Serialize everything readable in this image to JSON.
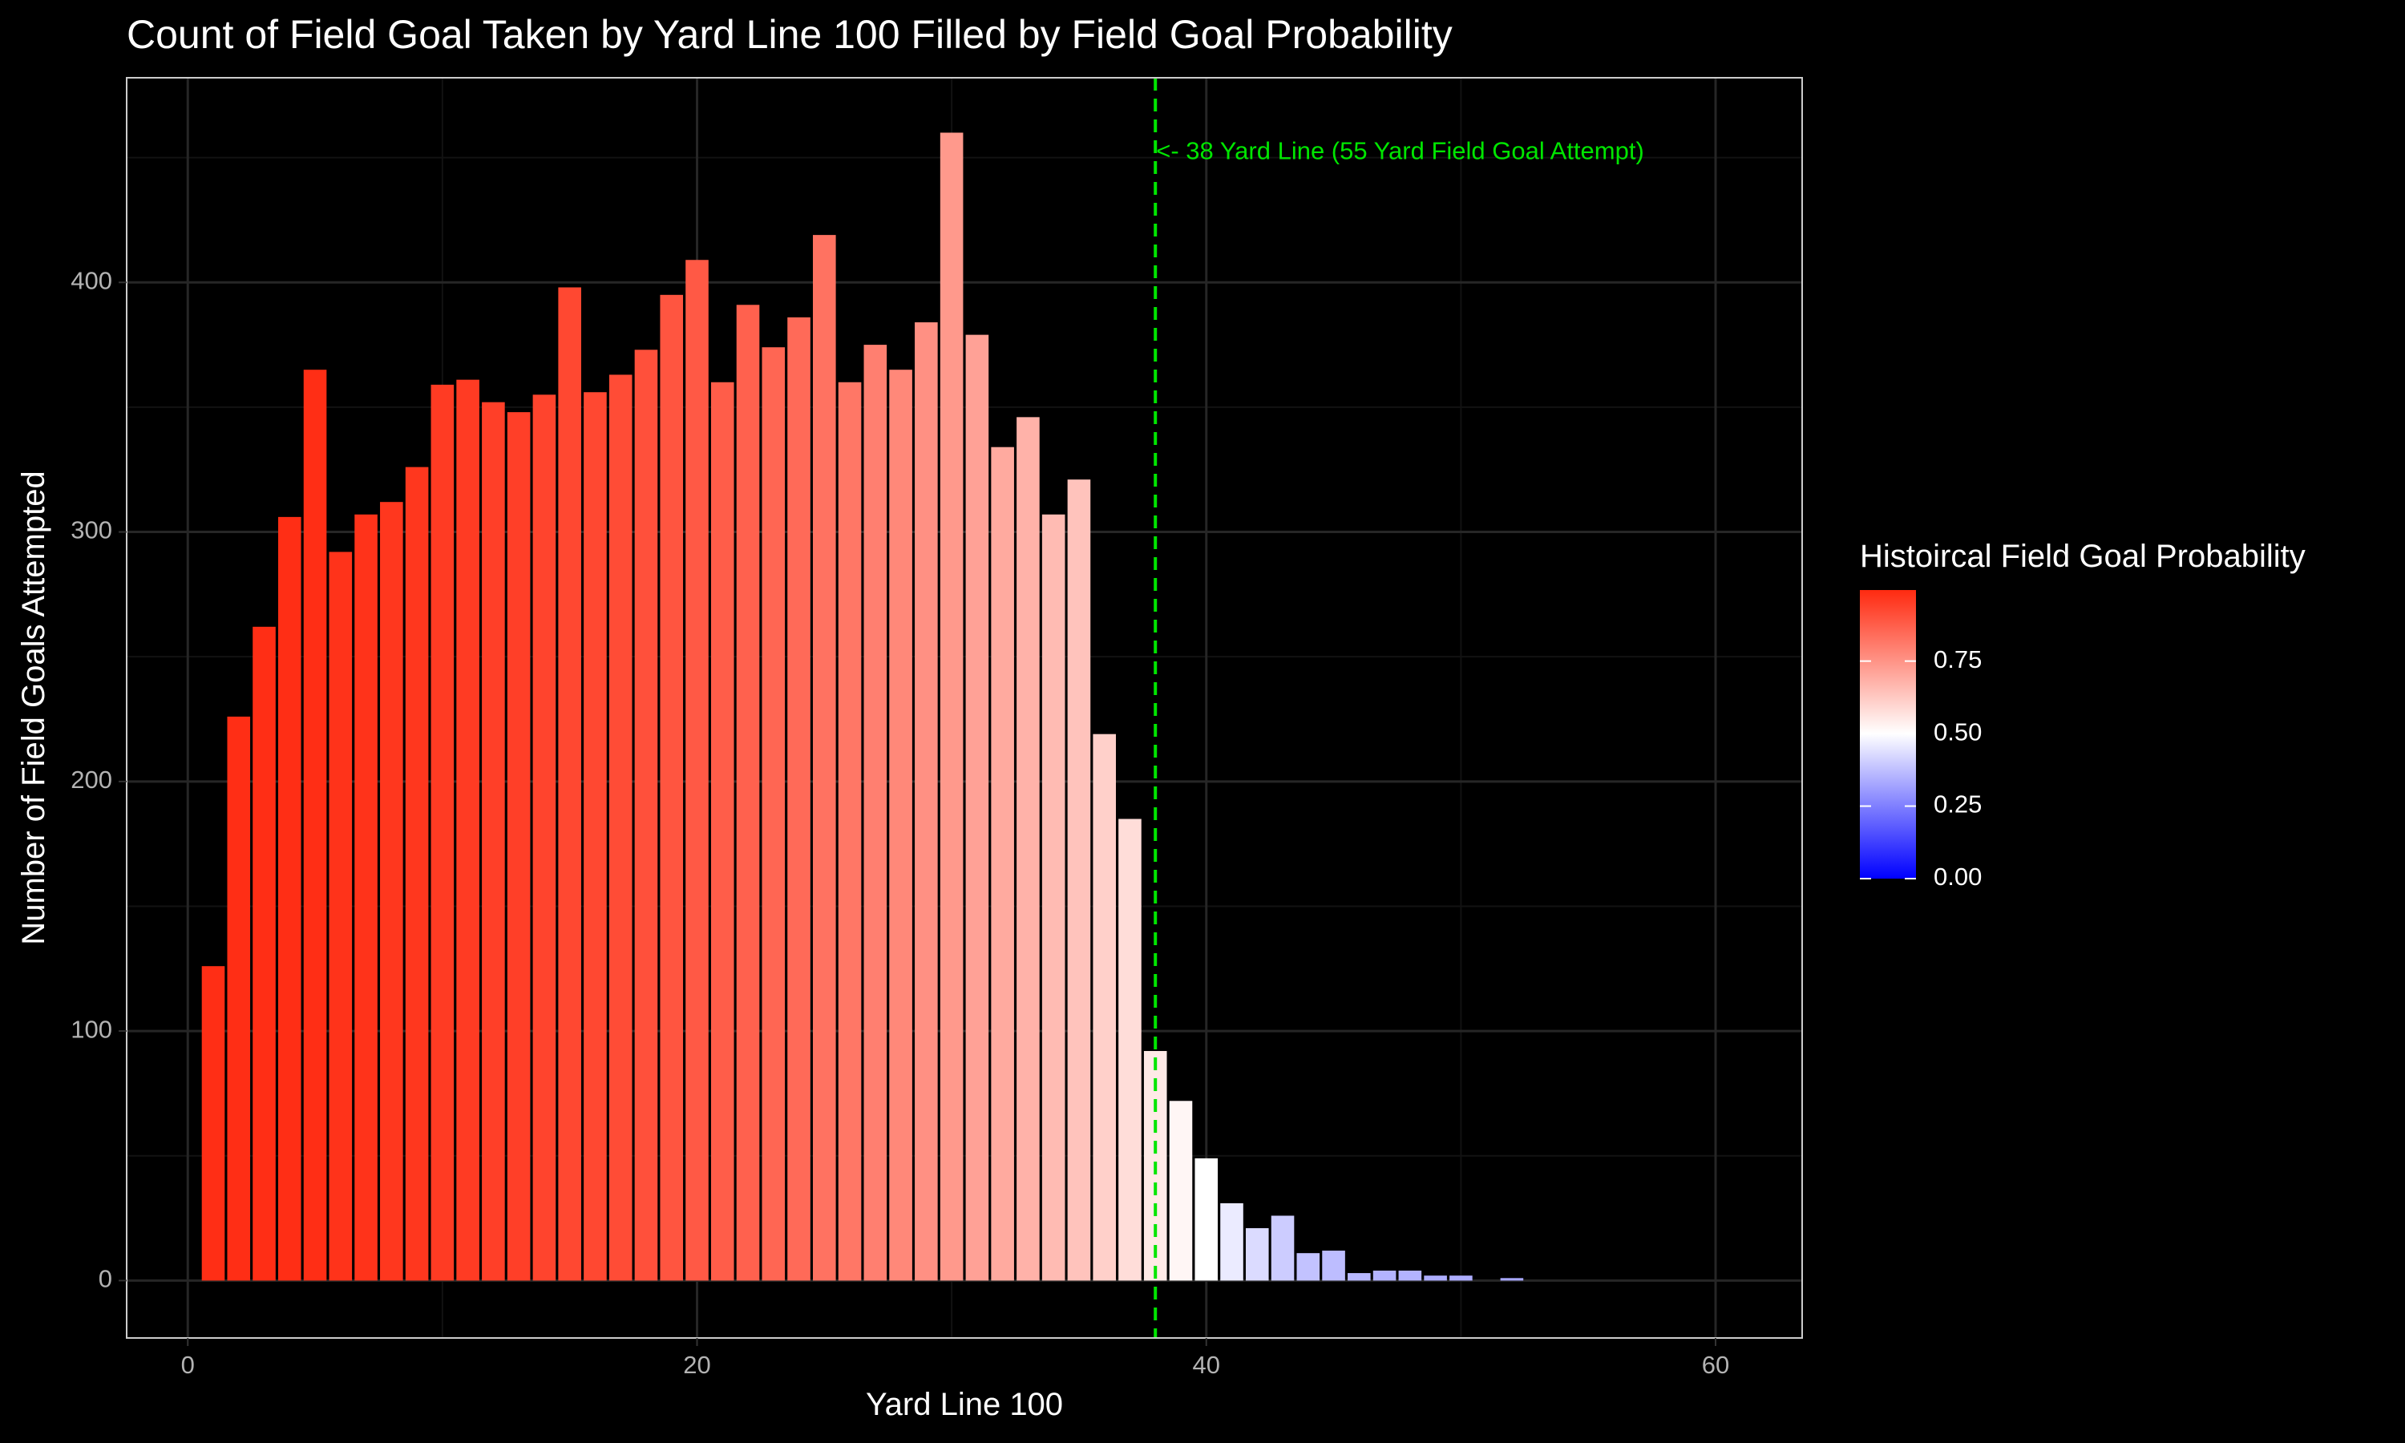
{
  "chart_data": {
    "type": "bar",
    "title": "Count of Field Goal Taken by Yard Line 100 Filled by Field Goal Probability",
    "xlabel": "Yard Line 100",
    "ylabel": "Number of Field Goals Attempted",
    "xlim": [
      -2.4,
      63.4
    ],
    "ylim": [
      -23,
      482
    ],
    "x_ticks": [
      0,
      20,
      40,
      60
    ],
    "y_ticks": [
      0,
      100,
      200,
      300,
      400
    ],
    "grid": true,
    "x": [
      1,
      2,
      3,
      4,
      5,
      6,
      7,
      8,
      9,
      10,
      11,
      12,
      13,
      14,
      15,
      16,
      17,
      18,
      19,
      20,
      21,
      22,
      23,
      24,
      25,
      26,
      27,
      28,
      29,
      30,
      31,
      32,
      33,
      34,
      35,
      36,
      37,
      38,
      39,
      40,
      41,
      42,
      43,
      44,
      45,
      46,
      47,
      48,
      49,
      50,
      51,
      52
    ],
    "values": [
      126,
      226,
      262,
      306,
      365,
      292,
      307,
      312,
      326,
      359,
      361,
      352,
      348,
      355,
      398,
      356,
      363,
      373,
      395,
      409,
      360,
      391,
      374,
      386,
      419,
      360,
      375,
      365,
      384,
      460,
      379,
      334,
      346,
      307,
      321,
      219,
      185,
      92,
      72,
      49,
      31,
      21,
      26,
      11,
      12,
      3,
      4,
      4,
      2,
      2,
      0,
      1
    ],
    "fill_probability": [
      0.99,
      0.99,
      0.99,
      0.99,
      0.99,
      0.98,
      0.98,
      0.97,
      0.97,
      0.96,
      0.96,
      0.95,
      0.95,
      0.94,
      0.93,
      0.93,
      0.92,
      0.91,
      0.9,
      0.89,
      0.88,
      0.87,
      0.86,
      0.85,
      0.83,
      0.82,
      0.8,
      0.78,
      0.76,
      0.74,
      0.72,
      0.7,
      0.68,
      0.66,
      0.64,
      0.61,
      0.58,
      0.55,
      0.52,
      0.5,
      0.46,
      0.43,
      0.4,
      0.38,
      0.37,
      0.36,
      0.35,
      0.35,
      0.34,
      0.34,
      0.33,
      0.33
    ],
    "reference_line": {
      "x": 38,
      "color": "#00e600",
      "label": "<- 38 Yard Line (55 Yard Field Goal Attempt)",
      "label_y": 452
    },
    "legend": {
      "title": "Histoircal Field Goal Probability",
      "placement": "right",
      "ticks": [
        0.75,
        0.5,
        0.25,
        0.0
      ],
      "tick_labels": [
        "0.75",
        "0.50",
        "0.25",
        "0.00"
      ],
      "range": [
        0.0,
        0.995
      ],
      "low_color": "#0000ff",
      "mid_color": "#ffffff",
      "high_color": "#ff2a10"
    },
    "colors": {
      "background": "#000000",
      "panel_border": "#cccccc",
      "grid_major": "#262626",
      "grid_minor": "#121212"
    }
  }
}
